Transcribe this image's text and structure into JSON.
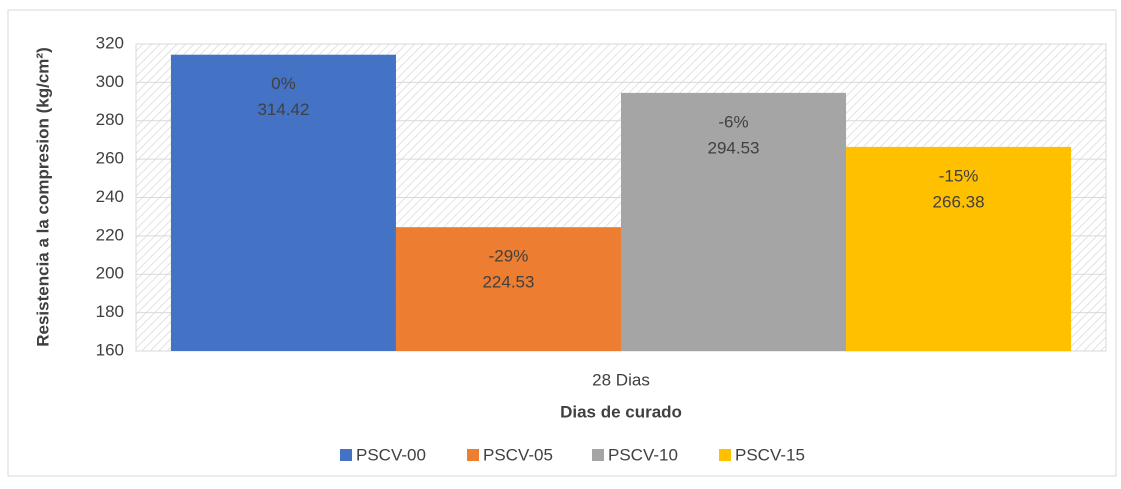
{
  "chart_data": {
    "type": "bar",
    "categories": [
      "28 Dias"
    ],
    "x_label": "Dias de curado",
    "y_label": "Resistencia a la compresion (kg/cm²)",
    "series": [
      {
        "name": "PSCV-00",
        "color": "#4472c4",
        "values": [
          314.42
        ],
        "annotations": [
          "0%"
        ]
      },
      {
        "name": "PSCV-05",
        "color": "#ed7d31",
        "values": [
          224.53
        ],
        "annotations": [
          "-29%"
        ]
      },
      {
        "name": "PSCV-10",
        "color": "#a5a5a5",
        "values": [
          294.53
        ],
        "annotations": [
          "-6%"
        ]
      },
      {
        "name": "PSCV-15",
        "color": "#ffc000",
        "values": [
          266.38
        ],
        "annotations": [
          "-15%"
        ]
      }
    ],
    "ylim": [
      160,
      320
    ],
    "yticks": [
      160,
      180,
      200,
      220,
      240,
      260,
      280,
      300,
      320
    ],
    "grid": true,
    "legend": "bottom"
  }
}
